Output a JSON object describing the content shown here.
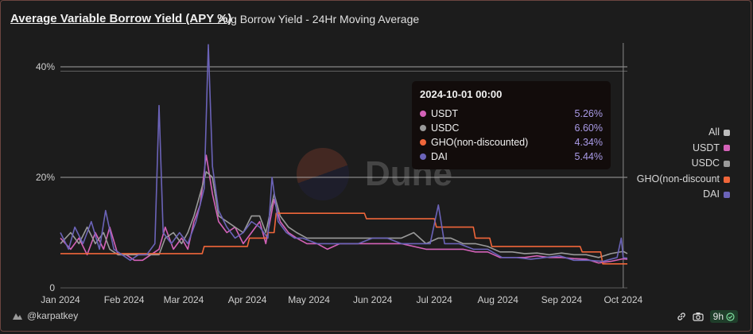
{
  "header": {
    "title": "Average Variable Borrow Yield (APY %)",
    "subtitle": "Avg Borrow Yield - 24Hr Moving Average"
  },
  "legend": {
    "items": [
      {
        "label": "All",
        "color": "#bdbdbd"
      },
      {
        "label": "USDT",
        "color": "#d462b8"
      },
      {
        "label": "USDC",
        "color": "#9a9a9a"
      },
      {
        "label": "GHO(non-discount",
        "color": "#f0663a"
      },
      {
        "label": "DAI",
        "color": "#6b63b8"
      }
    ]
  },
  "tooltip": {
    "date": "2024-10-01 00:00",
    "rows": [
      {
        "name": "USDT",
        "value": "5.26%",
        "color": "#d462b8"
      },
      {
        "name": "USDC",
        "value": "6.60%",
        "color": "#9a9a9a"
      },
      {
        "name": "GHO(non-discounted)",
        "value": "4.34%",
        "color": "#f0663a"
      },
      {
        "name": "DAI",
        "value": "5.44%",
        "color": "#6b63b8"
      }
    ]
  },
  "watermark": "Dune",
  "footer": {
    "author": "@karpatkey",
    "refresh": "9h"
  },
  "chart_data": {
    "type": "line",
    "x_ticks": [
      "Jan 2024",
      "Feb 2024",
      "Mar 2024",
      "Apr 2024",
      "May 2024",
      "Jun 2024",
      "Jul 2024",
      "Aug 2024",
      "Sep 2024",
      "Oct 2024"
    ],
    "y_ticks": [
      "0",
      "20%",
      "40%"
    ],
    "ylim": [
      0,
      40
    ],
    "xlim": [
      "2024-01-01",
      "2024-10-03"
    ],
    "grid": true,
    "legend_position": "right",
    "series": [
      {
        "name": "USDT",
        "color": "#d462b8",
        "points": [
          [
            "2024-01-01",
            9
          ],
          [
            "2024-01-06",
            7
          ],
          [
            "2024-01-10",
            9
          ],
          [
            "2024-01-14",
            6
          ],
          [
            "2024-01-18",
            10
          ],
          [
            "2024-01-22",
            7
          ],
          [
            "2024-01-25",
            11
          ],
          [
            "2024-01-29",
            6
          ],
          [
            "2024-02-02",
            6
          ],
          [
            "2024-02-06",
            5
          ],
          [
            "2024-02-10",
            5
          ],
          [
            "2024-02-14",
            6
          ],
          [
            "2024-02-18",
            7
          ],
          [
            "2024-02-21",
            11
          ],
          [
            "2024-02-25",
            7
          ],
          [
            "2024-02-29",
            9
          ],
          [
            "2024-03-03",
            7
          ],
          [
            "2024-03-06",
            12
          ],
          [
            "2024-03-09",
            15
          ],
          [
            "2024-03-12",
            24
          ],
          [
            "2024-03-15",
            17
          ],
          [
            "2024-03-18",
            12
          ],
          [
            "2024-03-22",
            10
          ],
          [
            "2024-03-26",
            11
          ],
          [
            "2024-03-30",
            8
          ],
          [
            "2024-04-03",
            10
          ],
          [
            "2024-04-07",
            12
          ],
          [
            "2024-04-10",
            8
          ],
          [
            "2024-04-14",
            16
          ],
          [
            "2024-04-17",
            12
          ],
          [
            "2024-04-21",
            10
          ],
          [
            "2024-04-25",
            9
          ],
          [
            "2024-04-30",
            8
          ],
          [
            "2024-05-05",
            8
          ],
          [
            "2024-05-10",
            7
          ],
          [
            "2024-05-16",
            8
          ],
          [
            "2024-05-22",
            8
          ],
          [
            "2024-05-28",
            8
          ],
          [
            "2024-06-03",
            8
          ],
          [
            "2024-06-09",
            8
          ],
          [
            "2024-06-15",
            8
          ],
          [
            "2024-06-21",
            7.5
          ],
          [
            "2024-06-27",
            7
          ],
          [
            "2024-07-03",
            7
          ],
          [
            "2024-07-09",
            7
          ],
          [
            "2024-07-15",
            7
          ],
          [
            "2024-07-21",
            6.5
          ],
          [
            "2024-07-27",
            6.5
          ],
          [
            "2024-08-02",
            5.5
          ],
          [
            "2024-08-08",
            5.5
          ],
          [
            "2024-08-14",
            5.5
          ],
          [
            "2024-08-20",
            5.8
          ],
          [
            "2024-08-26",
            5.5
          ],
          [
            "2024-09-01",
            5.5
          ],
          [
            "2024-09-07",
            5.3
          ],
          [
            "2024-09-13",
            5.2
          ],
          [
            "2024-09-19",
            4.5
          ],
          [
            "2024-09-25",
            4.8
          ],
          [
            "2024-10-01",
            5.26
          ],
          [
            "2024-10-03",
            5.2
          ]
        ]
      },
      {
        "name": "USDC",
        "color": "#9a9a9a",
        "points": [
          [
            "2024-01-01",
            8
          ],
          [
            "2024-01-06",
            10
          ],
          [
            "2024-01-10",
            8
          ],
          [
            "2024-01-14",
            11
          ],
          [
            "2024-01-18",
            8
          ],
          [
            "2024-01-22",
            10
          ],
          [
            "2024-01-25",
            7
          ],
          [
            "2024-01-29",
            6
          ],
          [
            "2024-02-02",
            6
          ],
          [
            "2024-02-06",
            6
          ],
          [
            "2024-02-10",
            6
          ],
          [
            "2024-02-14",
            6
          ],
          [
            "2024-02-18",
            6
          ],
          [
            "2024-02-21",
            9
          ],
          [
            "2024-02-25",
            10
          ],
          [
            "2024-02-29",
            8
          ],
          [
            "2024-03-03",
            10
          ],
          [
            "2024-03-06",
            13
          ],
          [
            "2024-03-09",
            17
          ],
          [
            "2024-03-12",
            21
          ],
          [
            "2024-03-15",
            20
          ],
          [
            "2024-03-18",
            13
          ],
          [
            "2024-03-22",
            12
          ],
          [
            "2024-03-26",
            11
          ],
          [
            "2024-03-30",
            10
          ],
          [
            "2024-04-03",
            13
          ],
          [
            "2024-04-07",
            13
          ],
          [
            "2024-04-10",
            10
          ],
          [
            "2024-04-14",
            17
          ],
          [
            "2024-04-17",
            13
          ],
          [
            "2024-04-21",
            11
          ],
          [
            "2024-04-25",
            10
          ],
          [
            "2024-04-30",
            9
          ],
          [
            "2024-05-05",
            9
          ],
          [
            "2024-05-10",
            9
          ],
          [
            "2024-05-16",
            9
          ],
          [
            "2024-05-22",
            9
          ],
          [
            "2024-05-28",
            9
          ],
          [
            "2024-06-03",
            9
          ],
          [
            "2024-06-09",
            9
          ],
          [
            "2024-06-15",
            9
          ],
          [
            "2024-06-21",
            10
          ],
          [
            "2024-06-27",
            8
          ],
          [
            "2024-07-03",
            9
          ],
          [
            "2024-07-09",
            9
          ],
          [
            "2024-07-15",
            8
          ],
          [
            "2024-07-21",
            8
          ],
          [
            "2024-07-27",
            7.5
          ],
          [
            "2024-08-02",
            6.5
          ],
          [
            "2024-08-08",
            6.5
          ],
          [
            "2024-08-14",
            6.2
          ],
          [
            "2024-08-20",
            6.3
          ],
          [
            "2024-08-26",
            6
          ],
          [
            "2024-09-01",
            6.3
          ],
          [
            "2024-09-07",
            6
          ],
          [
            "2024-09-13",
            6
          ],
          [
            "2024-09-19",
            5.5
          ],
          [
            "2024-09-25",
            6.2
          ],
          [
            "2024-10-01",
            6.6
          ],
          [
            "2024-10-03",
            6.2
          ]
        ]
      },
      {
        "name": "GHO(non-discounted)",
        "color": "#f0663a",
        "points": [
          [
            "2024-01-01",
            6.2
          ],
          [
            "2024-02-22",
            6.2
          ],
          [
            "2024-02-23",
            6.2
          ],
          [
            "2024-03-10",
            6.2
          ],
          [
            "2024-03-11",
            7.5
          ],
          [
            "2024-04-01",
            7.5
          ],
          [
            "2024-04-02",
            9
          ],
          [
            "2024-04-10",
            9
          ],
          [
            "2024-04-11",
            10
          ],
          [
            "2024-04-14",
            10
          ],
          [
            "2024-04-15",
            13.5
          ],
          [
            "2024-05-28",
            13.5
          ],
          [
            "2024-05-29",
            12.5
          ],
          [
            "2024-07-01",
            12.5
          ],
          [
            "2024-07-02",
            11
          ],
          [
            "2024-07-20",
            11
          ],
          [
            "2024-07-21",
            9
          ],
          [
            "2024-07-28",
            9
          ],
          [
            "2024-07-29",
            7.5
          ],
          [
            "2024-09-10",
            7.5
          ],
          [
            "2024-09-11",
            6.5
          ],
          [
            "2024-09-20",
            6.5
          ],
          [
            "2024-09-21",
            4.34
          ],
          [
            "2024-10-03",
            4.34
          ]
        ]
      },
      {
        "name": "DAI",
        "color": "#6b63b8",
        "points": [
          [
            "2024-01-01",
            10
          ],
          [
            "2024-01-05",
            7
          ],
          [
            "2024-01-08",
            11
          ],
          [
            "2024-01-12",
            8
          ],
          [
            "2024-01-16",
            12
          ],
          [
            "2024-01-20",
            7
          ],
          [
            "2024-01-23",
            14
          ],
          [
            "2024-01-27",
            7
          ],
          [
            "2024-01-31",
            6
          ],
          [
            "2024-02-04",
            5
          ],
          [
            "2024-02-08",
            6
          ],
          [
            "2024-02-12",
            6
          ],
          [
            "2024-02-16",
            8
          ],
          [
            "2024-02-18",
            33
          ],
          [
            "2024-02-20",
            10
          ],
          [
            "2024-02-24",
            8
          ],
          [
            "2024-02-28",
            10
          ],
          [
            "2024-03-03",
            8
          ],
          [
            "2024-03-07",
            12
          ],
          [
            "2024-03-11",
            18
          ],
          [
            "2024-03-13",
            44
          ],
          [
            "2024-03-15",
            22
          ],
          [
            "2024-03-18",
            14
          ],
          [
            "2024-03-22",
            11
          ],
          [
            "2024-03-26",
            9
          ],
          [
            "2024-03-30",
            10
          ],
          [
            "2024-04-03",
            12
          ],
          [
            "2024-04-07",
            11
          ],
          [
            "2024-04-11",
            9
          ],
          [
            "2024-04-13",
            20
          ],
          [
            "2024-04-16",
            12
          ],
          [
            "2024-04-20",
            10
          ],
          [
            "2024-04-24",
            9
          ],
          [
            "2024-04-28",
            9
          ],
          [
            "2024-05-05",
            8
          ],
          [
            "2024-05-12",
            8
          ],
          [
            "2024-05-18",
            8
          ],
          [
            "2024-05-25",
            8
          ],
          [
            "2024-06-01",
            9
          ],
          [
            "2024-06-08",
            9
          ],
          [
            "2024-06-15",
            8
          ],
          [
            "2024-06-22",
            8
          ],
          [
            "2024-06-29",
            8
          ],
          [
            "2024-07-03",
            15
          ],
          [
            "2024-07-06",
            8
          ],
          [
            "2024-07-13",
            8
          ],
          [
            "2024-07-20",
            7
          ],
          [
            "2024-07-27",
            7
          ],
          [
            "2024-08-03",
            5.5
          ],
          [
            "2024-08-10",
            5.5
          ],
          [
            "2024-08-17",
            5.2
          ],
          [
            "2024-08-24",
            5.5
          ],
          [
            "2024-08-31",
            5.8
          ],
          [
            "2024-09-07",
            5
          ],
          [
            "2024-09-14",
            5
          ],
          [
            "2024-09-21",
            4.8
          ],
          [
            "2024-09-28",
            5.5
          ],
          [
            "2024-09-30",
            9
          ],
          [
            "2024-10-01",
            5.44
          ],
          [
            "2024-10-03",
            5.4
          ]
        ]
      }
    ]
  }
}
